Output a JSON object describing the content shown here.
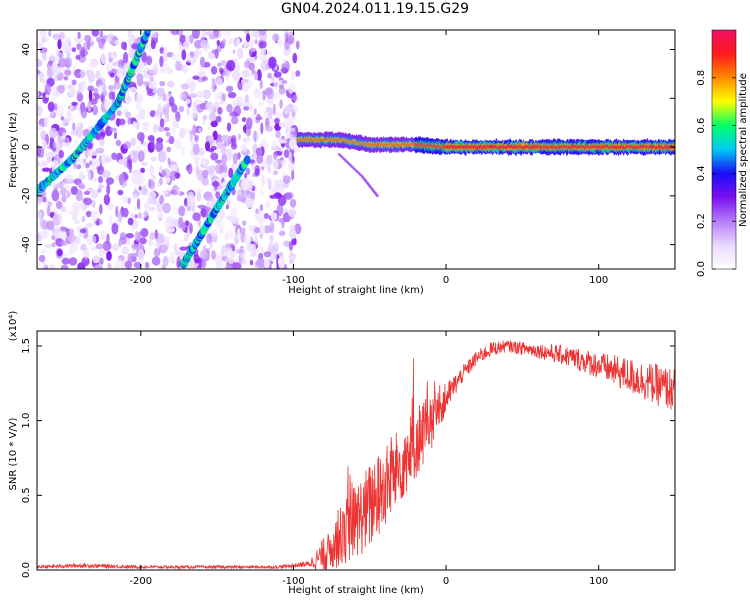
{
  "figure": {
    "title": "GN04.2024.011.19.15.G29"
  },
  "chart_data": [
    {
      "type": "heatmap",
      "xlabel": "Height of straight line (km)",
      "ylabel": "Frequency (Hz)",
      "xlim": [
        -268,
        150
      ],
      "ylim": [
        -50,
        48
      ],
      "x_ticks": [
        -200,
        -100,
        0,
        100
      ],
      "y_ticks": [
        -40,
        -20,
        0,
        20,
        40
      ],
      "x_tick_labels": [
        "-200",
        "-100",
        "0",
        "100"
      ],
      "y_tick_labels": [
        "-40",
        "-20",
        "0",
        "20",
        "40"
      ],
      "data_x_range": [
        -268,
        -97
      ],
      "noise_region": {
        "x_range": [
          -268,
          -97
        ],
        "y_range": [
          -50,
          48
        ]
      },
      "features": [
        {
          "name": "",
          "type": "diagonal",
          "points": [
            [
              -268,
              -18
            ],
            [
              -245,
              -5
            ],
            [
              -215,
              18
            ],
            [
              -195,
              48
            ]
          ]
        },
        {
          "name": "",
          "type": "diagonal",
          "points": [
            [
              -172,
              -48
            ],
            [
              -150,
              -25
            ],
            [
              -130,
              -5
            ]
          ]
        },
        {
          "name": "",
          "type": "horizontal",
          "points": [
            [
              -97,
              3
            ],
            [
              -70,
              3
            ],
            [
              -50,
              1
            ],
            [
              -20,
              1
            ],
            [
              0,
              0
            ],
            [
              60,
              0
            ],
            [
              100,
              0
            ],
            [
              150,
              0
            ]
          ]
        },
        {
          "name": "",
          "type": "branch",
          "points": [
            [
              -70,
              -3
            ],
            [
              -55,
              -12
            ],
            [
              -45,
              -20
            ]
          ]
        }
      ],
      "colorbar": {
        "label": "Normalized spectral amplitude",
        "range": [
          0,
          1
        ],
        "ticks": [
          0.0,
          0.2,
          0.4,
          0.6,
          0.8
        ],
        "tick_labels": [
          "0.0",
          "0.2",
          "0.4",
          "0.6",
          "0.8"
        ],
        "colors": [
          "#ffffff",
          "#e9d8ff",
          "#b57cf7",
          "#7a10ef",
          "#1a0ef5",
          "#00c8f8",
          "#00ff66",
          "#ffff00",
          "#ff8a00",
          "#ff1a1a",
          "#ee1166"
        ]
      }
    },
    {
      "type": "line",
      "xlabel": "Height of straight line (km)",
      "ylabel": "SNR (10 * V/V)",
      "y_scale_label": "(x10⁴)",
      "xlim": [
        -268,
        150
      ],
      "ylim": [
        0,
        1.6
      ],
      "x_ticks": [
        -200,
        -100,
        0,
        100
      ],
      "y_ticks": [
        0.0,
        0.5,
        1.0,
        1.5
      ],
      "x_tick_labels": [
        "-200",
        "-100",
        "0",
        "100"
      ],
      "y_tick_labels": [
        "0.0",
        "0.5",
        "1.0",
        "1.5"
      ],
      "line_color": "#ee3333",
      "series": [
        {
          "name": "",
          "x": [
            -268,
            -240,
            -200,
            -150,
            -110,
            -90,
            -80,
            -70,
            -60,
            -50,
            -40,
            -30,
            -20,
            -10,
            0,
            10,
            20,
            30,
            40,
            60,
            80,
            100,
            120,
            150
          ],
          "y": [
            0.02,
            0.03,
            0.02,
            0.02,
            0.02,
            0.04,
            0.1,
            0.22,
            0.32,
            0.42,
            0.55,
            0.7,
            0.85,
            1.0,
            1.15,
            1.3,
            1.42,
            1.48,
            1.5,
            1.47,
            1.43,
            1.37,
            1.3,
            1.2
          ],
          "noise": [
            0.01,
            0.015,
            0.01,
            0.01,
            0.01,
            0.02,
            0.12,
            0.2,
            0.25,
            0.3,
            0.28,
            0.26,
            0.25,
            0.22,
            0.1,
            0.06,
            0.05,
            0.05,
            0.04,
            0.05,
            0.07,
            0.09,
            0.12,
            0.15
          ]
        }
      ]
    }
  ]
}
